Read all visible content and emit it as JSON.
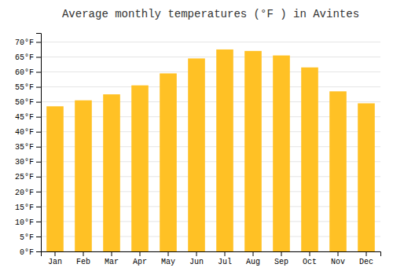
{
  "chart_data": {
    "type": "bar",
    "title": "Average monthly temperatures (°F ) in Avintes",
    "categories": [
      "Jan",
      "Feb",
      "Mar",
      "Apr",
      "May",
      "Jun",
      "Jul",
      "Aug",
      "Sep",
      "Oct",
      "Nov",
      "Dec"
    ],
    "values": [
      48.5,
      50.5,
      52.5,
      55.5,
      59.5,
      64.5,
      67.5,
      67.0,
      65.5,
      61.5,
      53.5,
      49.5
    ],
    "color": "#FFC125",
    "ylim": [
      0,
      73
    ],
    "yticks": [
      {
        "value": 0,
        "label": "0°F"
      },
      {
        "value": 5,
        "label": "5°F"
      },
      {
        "value": 10,
        "label": "10°F"
      },
      {
        "value": 15,
        "label": "15°F"
      },
      {
        "value": 20,
        "label": "20°F"
      },
      {
        "value": 25,
        "label": "25°F"
      },
      {
        "value": 30,
        "label": "30°F"
      },
      {
        "value": 35,
        "label": "35°F"
      },
      {
        "value": 40,
        "label": "40°F"
      },
      {
        "value": 45,
        "label": "45°F"
      },
      {
        "value": 50,
        "label": "50°F"
      },
      {
        "value": 55,
        "label": "55°F"
      },
      {
        "value": 60,
        "label": "60°F"
      },
      {
        "value": 65,
        "label": "65°F"
      },
      {
        "value": 70,
        "label": "70°F"
      }
    ],
    "grid": true
  }
}
